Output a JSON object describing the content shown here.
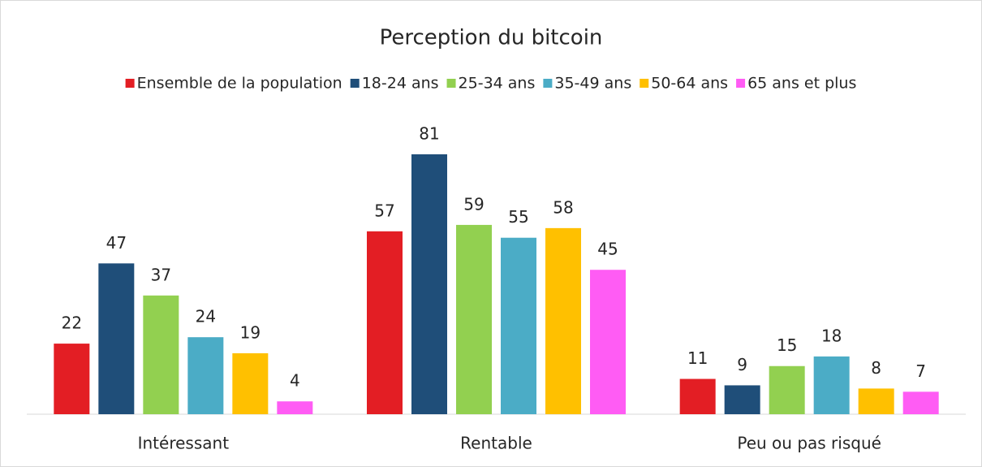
{
  "chart_data": {
    "type": "bar",
    "title": "Perception du bitcoin",
    "categories": [
      "Intéressant",
      "Rentable",
      "Peu ou pas risqué"
    ],
    "series": [
      {
        "name": "Ensemble de la population",
        "color": "#e31e24",
        "values": [
          22,
          57,
          11
        ]
      },
      {
        "name": "18-24 ans",
        "color": "#1f4e79",
        "values": [
          47,
          81,
          9
        ]
      },
      {
        "name": "25-34 ans",
        "color": "#92d050",
        "values": [
          37,
          59,
          15
        ]
      },
      {
        "name": "35-49 ans",
        "color": "#4bacc6",
        "values": [
          24,
          55,
          18
        ]
      },
      {
        "name": "50-64 ans",
        "color": "#ffc000",
        "values": [
          19,
          58,
          8
        ]
      },
      {
        "name": "65 ans et plus",
        "color": "#ff5cf4",
        "values": [
          4,
          45,
          7
        ]
      }
    ],
    "legend": "top"
  }
}
